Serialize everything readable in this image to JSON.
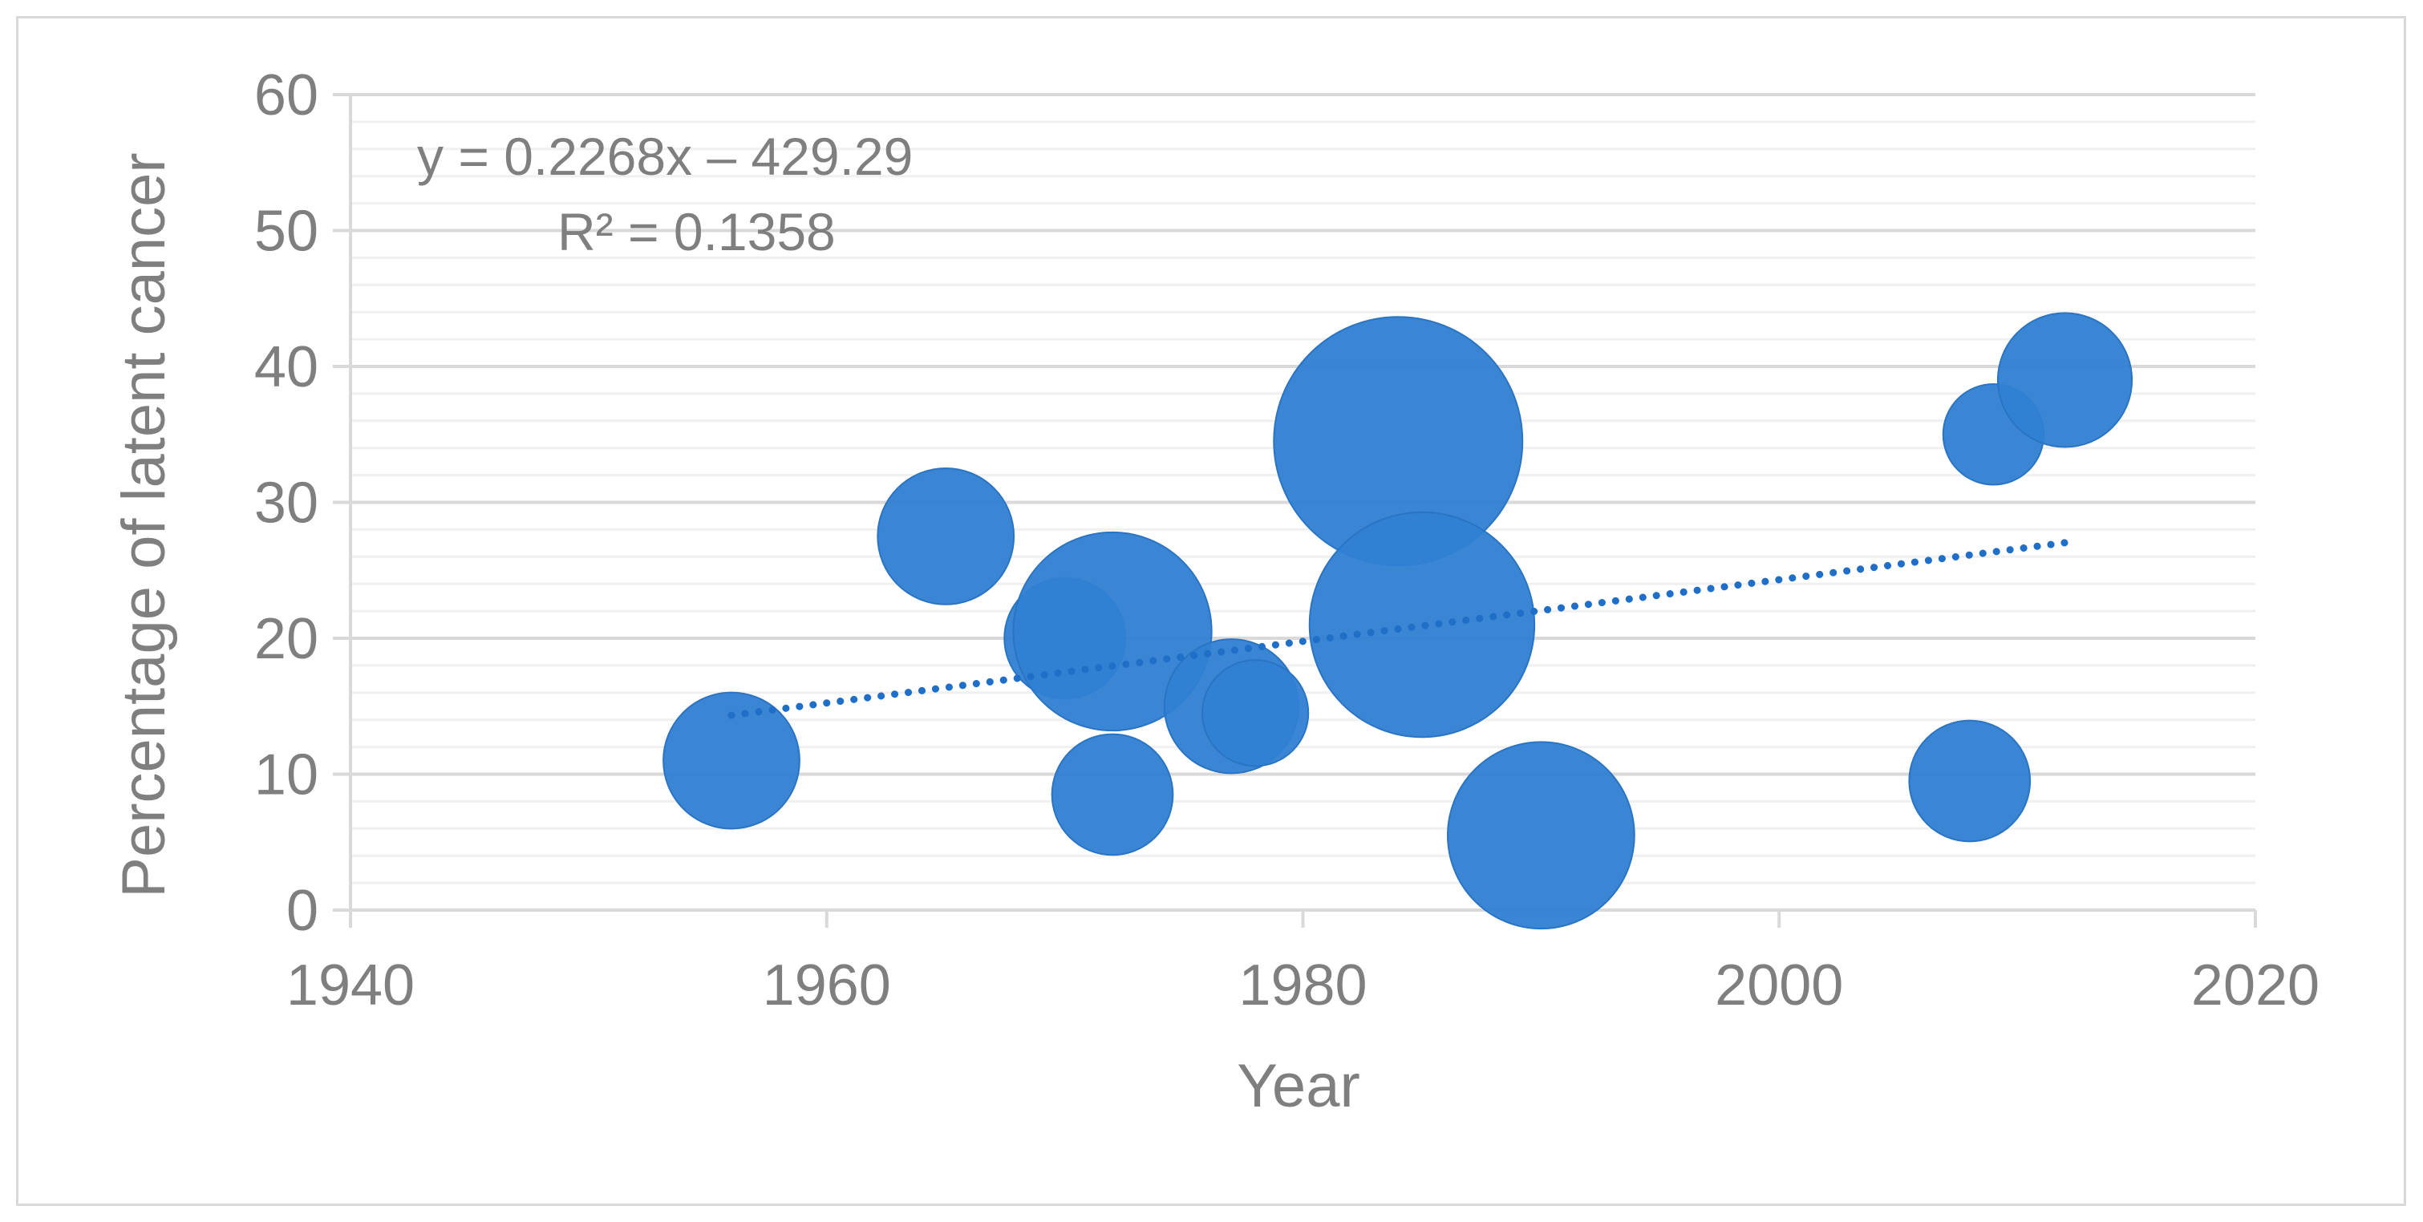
{
  "chart_data": {
    "type": "scatter",
    "subtype": "bubble",
    "title": "",
    "xlabel": "Year",
    "ylabel": "Percentage of latent cancer",
    "xlim": [
      1940,
      2020
    ],
    "ylim": [
      0,
      60
    ],
    "x_ticks": [
      1940,
      1960,
      1980,
      2000,
      2020
    ],
    "y_ticks": [
      0,
      10,
      20,
      30,
      40,
      50,
      60
    ],
    "grid": true,
    "legend": "none",
    "bubble_color": "#2f7fd3",
    "trendline_color": "#1f6fc8",
    "points": [
      {
        "x": 1956,
        "y": 11,
        "size": 3.3
      },
      {
        "x": 1965,
        "y": 27.5,
        "size": 3.3
      },
      {
        "x": 1970,
        "y": 20,
        "size": 2.6
      },
      {
        "x": 1972,
        "y": 20.5,
        "size": 7.0
      },
      {
        "x": 1972,
        "y": 8.5,
        "size": 2.6
      },
      {
        "x": 1977,
        "y": 15,
        "size": 3.2
      },
      {
        "x": 1978,
        "y": 14.5,
        "size": 2.0
      },
      {
        "x": 1984,
        "y": 34.5,
        "size": 11.0
      },
      {
        "x": 1985,
        "y": 21,
        "size": 9.0
      },
      {
        "x": 1990,
        "y": 5.5,
        "size": 6.2
      },
      {
        "x": 2008,
        "y": 9.5,
        "size": 2.6
      },
      {
        "x": 2009,
        "y": 35,
        "size": 1.8
      },
      {
        "x": 2012,
        "y": 39,
        "size": 3.2
      }
    ],
    "trendline": {
      "type": "linear",
      "slope": 0.2268,
      "intercept": -429.29,
      "x_start": 1956,
      "x_end": 2012,
      "style": "dotted"
    },
    "annotations": {
      "equation": "y = 0.2268x – 429.29",
      "r_squared": "R² = 0.1358"
    }
  }
}
